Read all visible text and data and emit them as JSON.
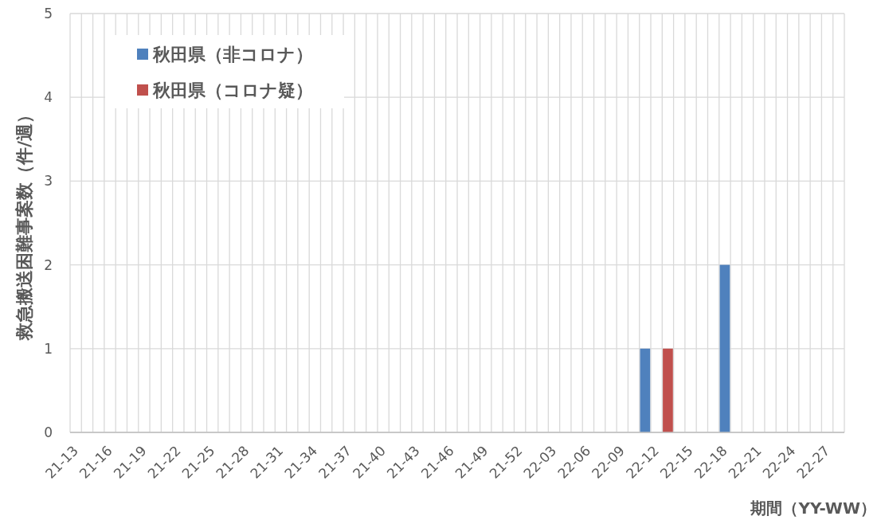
{
  "chart_data": {
    "type": "bar",
    "xlabel": "期間（YY-WW）",
    "ylabel": "救急搬送困難事案数（件/週）",
    "categories": [
      "21-13",
      null,
      null,
      "21-16",
      null,
      null,
      "21-19",
      null,
      null,
      "21-22",
      null,
      null,
      "21-25",
      null,
      null,
      "21-28",
      null,
      null,
      "21-31",
      null,
      null,
      "21-34",
      null,
      null,
      "21-37",
      null,
      null,
      "21-40",
      null,
      null,
      "21-43",
      null,
      null,
      "21-46",
      null,
      null,
      "21-49",
      null,
      null,
      "21-52",
      null,
      null,
      "22-03",
      null,
      null,
      "22-06",
      null,
      null,
      "22-09",
      null,
      null,
      "22-12",
      null,
      null,
      "22-15",
      null,
      null,
      "22-18",
      null,
      null,
      "22-21",
      null,
      null,
      "22-24",
      null,
      null,
      "22-27",
      null
    ],
    "series": [
      {
        "name": "秋田県（非コロナ）",
        "color": "#4f81bd",
        "values": [
          0,
          0,
          0,
          0,
          0,
          0,
          0,
          0,
          0,
          0,
          0,
          0,
          0,
          0,
          0,
          0,
          0,
          0,
          0,
          0,
          0,
          0,
          0,
          0,
          0,
          0,
          0,
          0,
          0,
          0,
          0,
          0,
          0,
          0,
          0,
          0,
          0,
          0,
          0,
          0,
          0,
          0,
          0,
          0,
          0,
          0,
          0,
          0,
          0,
          0,
          1,
          0,
          0,
          0,
          0,
          0,
          0,
          2,
          0,
          0,
          0,
          0,
          0,
          0,
          0,
          0,
          0,
          0
        ]
      },
      {
        "name": "秋田県（コロナ疑）",
        "color": "#c0504d",
        "values": [
          0,
          0,
          0,
          0,
          0,
          0,
          0,
          0,
          0,
          0,
          0,
          0,
          0,
          0,
          0,
          0,
          0,
          0,
          0,
          0,
          0,
          0,
          0,
          0,
          0,
          0,
          0,
          0,
          0,
          0,
          0,
          0,
          0,
          0,
          0,
          0,
          0,
          0,
          0,
          0,
          0,
          0,
          0,
          0,
          0,
          0,
          0,
          0,
          0,
          0,
          0,
          0,
          1,
          0,
          0,
          0,
          0,
          0,
          0,
          0,
          0,
          0,
          0,
          0,
          0,
          0,
          0,
          0
        ]
      }
    ],
    "ylim": [
      0,
      5
    ],
    "yticks": [
      0,
      1,
      2,
      3,
      4,
      5
    ],
    "grid": true,
    "legend": "top left"
  }
}
